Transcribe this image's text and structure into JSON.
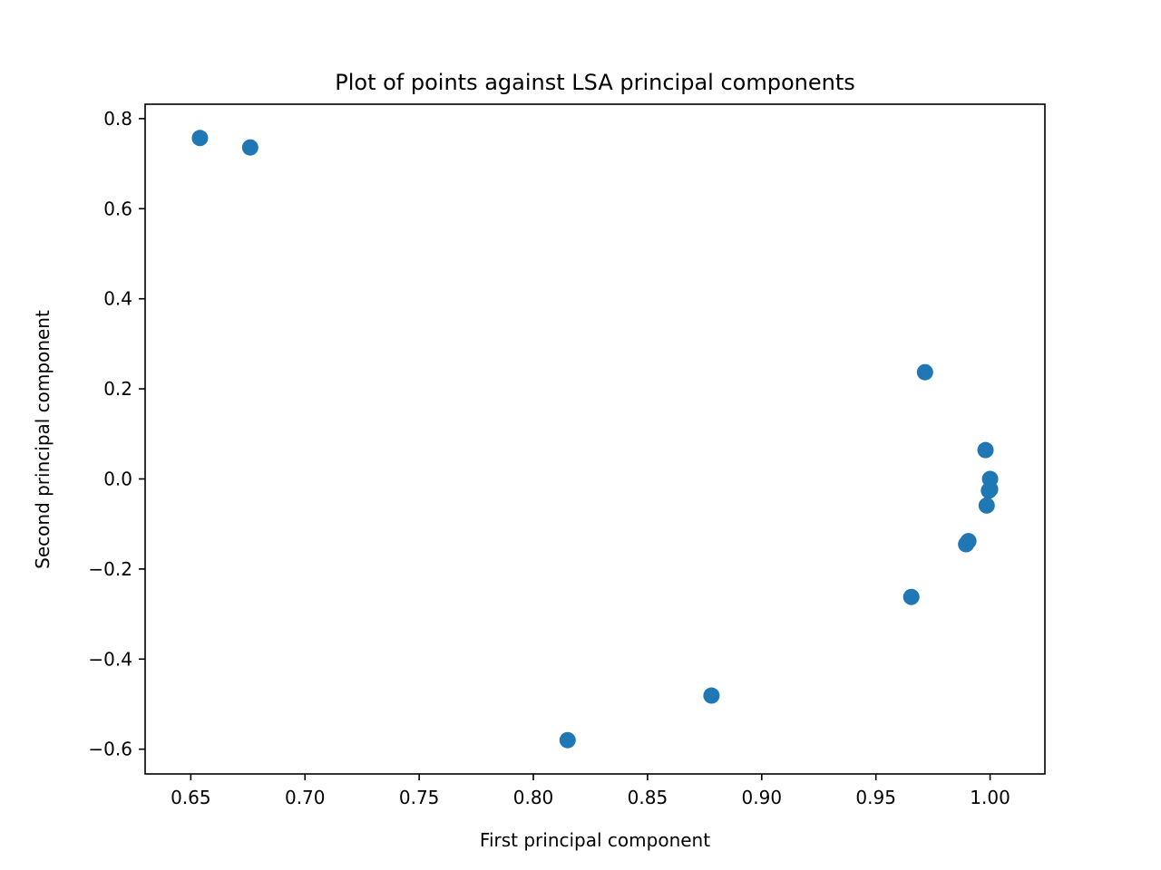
{
  "chart_data": {
    "type": "scatter",
    "title": "Plot of points against LSA principal components",
    "xlabel": "First principal component",
    "ylabel": "Second principal component",
    "xlim": [
      0.63,
      1.024
    ],
    "ylim": [
      -0.655,
      0.832
    ],
    "xticks": [
      0.65,
      0.7,
      0.75,
      0.8,
      0.85,
      0.9,
      0.95,
      1.0
    ],
    "xtick_labels": [
      "0.65",
      "0.70",
      "0.75",
      "0.80",
      "0.85",
      "0.90",
      "0.95",
      "1.00"
    ],
    "yticks": [
      -0.6,
      -0.4,
      -0.2,
      0.0,
      0.2,
      0.4,
      0.6,
      0.8
    ],
    "ytick_labels": [
      "−0.6",
      "−0.4",
      "−0.2",
      "0.0",
      "0.2",
      "0.4",
      "0.6",
      "0.8"
    ],
    "grid": false,
    "series": [
      {
        "color": "#1f77b4",
        "points": [
          {
            "x": 0.654,
            "y": 0.757
          },
          {
            "x": 0.676,
            "y": 0.736
          },
          {
            "x": 0.815,
            "y": -0.58
          },
          {
            "x": 0.878,
            "y": -0.481
          },
          {
            "x": 0.9655,
            "y": -0.262
          },
          {
            "x": 0.9715,
            "y": 0.237
          },
          {
            "x": 0.9895,
            "y": -0.145
          },
          {
            "x": 0.9905,
            "y": -0.138
          },
          {
            "x": 0.998,
            "y": 0.064
          },
          {
            "x": 0.9985,
            "y": -0.059
          },
          {
            "x": 0.9995,
            "y": -0.026
          },
          {
            "x": 1.0,
            "y": -0.023
          },
          {
            "x": 1.0,
            "y": 0.0
          }
        ]
      }
    ]
  }
}
